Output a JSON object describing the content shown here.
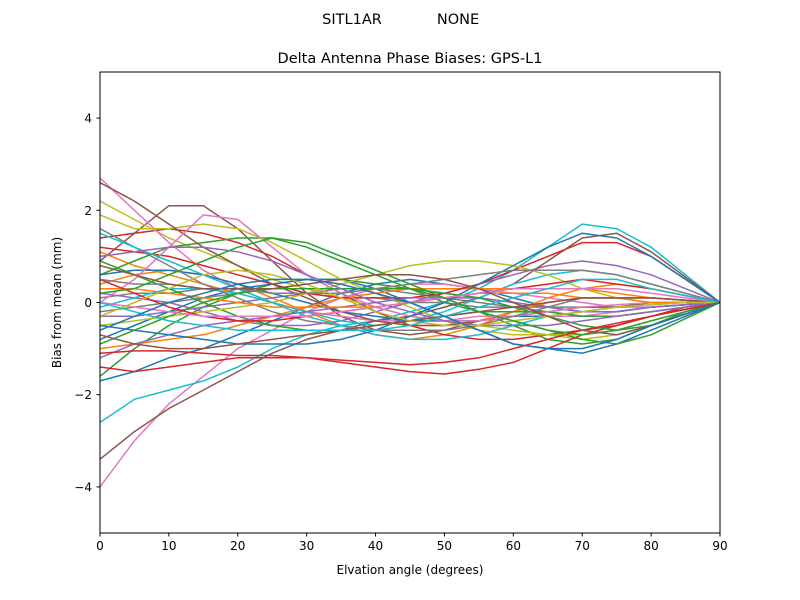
{
  "chart_data": {
    "type": "line",
    "suptitle_left": "SITL1AR",
    "suptitle_right": "NONE",
    "title": "Delta Antenna Phase Biases: GPS-L1",
    "xlabel": "Elvation angle (degrees)",
    "ylabel": "Bias from mean (mm)",
    "xlim": [
      0,
      90
    ],
    "ylim": [
      -5,
      5
    ],
    "xticks": [
      0,
      10,
      20,
      30,
      40,
      50,
      60,
      70,
      80,
      90
    ],
    "yticks": [
      -4,
      -2,
      0,
      2,
      4
    ],
    "grid": false,
    "legend": "none",
    "x": [
      0,
      5,
      10,
      15,
      20,
      25,
      30,
      35,
      40,
      45,
      50,
      55,
      60,
      65,
      70,
      75,
      80,
      85,
      90
    ],
    "series": [
      {
        "color": "#1f77b4",
        "values": [
          -1.7,
          -1.5,
          -1.2,
          -1.0,
          -0.7,
          -0.4,
          -0.1,
          0.2,
          0.4,
          0.5,
          0.4,
          0.3,
          0.1,
          -0.1,
          -0.2,
          -0.2,
          -0.1,
          -0.05,
          0
        ]
      },
      {
        "color": "#ff7f0e",
        "values": [
          0.4,
          0.6,
          0.7,
          0.6,
          0.4,
          0.1,
          -0.2,
          -0.5,
          -0.7,
          -0.8,
          -0.7,
          -0.5,
          -0.2,
          0.1,
          0.3,
          0.4,
          0.3,
          0.15,
          0
        ]
      },
      {
        "color": "#2ca02c",
        "values": [
          -1.6,
          -1.0,
          -0.5,
          -0.1,
          0.2,
          0.4,
          0.5,
          0.5,
          0.4,
          0.3,
          0.1,
          -0.2,
          -0.5,
          -0.8,
          -0.9,
          -0.8,
          -0.5,
          -0.2,
          0
        ]
      },
      {
        "color": "#d62728",
        "values": [
          1.4,
          1.5,
          1.6,
          1.5,
          1.3,
          1.0,
          0.6,
          0.2,
          -0.2,
          -0.5,
          -0.7,
          -0.8,
          -0.8,
          -0.7,
          -0.6,
          -0.5,
          -0.3,
          -0.1,
          0
        ]
      },
      {
        "color": "#9467bd",
        "values": [
          -0.3,
          -0.3,
          -0.2,
          -0.1,
          0.0,
          0.1,
          0.2,
          0.3,
          0.3,
          0.3,
          0.2,
          0.1,
          0.0,
          -0.1,
          -0.2,
          -0.2,
          -0.1,
          -0.05,
          0
        ]
      },
      {
        "color": "#8c564b",
        "values": [
          0.9,
          1.5,
          2.1,
          2.1,
          1.6,
          0.9,
          0.2,
          -0.3,
          -0.6,
          -0.7,
          -0.6,
          -0.4,
          -0.2,
          0.0,
          0.1,
          0.1,
          0.1,
          0.05,
          0
        ]
      },
      {
        "color": "#e377c2",
        "values": [
          -4.0,
          -3.0,
          -2.2,
          -1.6,
          -1.0,
          -0.6,
          -0.2,
          0.1,
          0.3,
          0.4,
          0.4,
          0.3,
          0.2,
          0.1,
          0.0,
          -0.1,
          -0.1,
          -0.05,
          0
        ]
      },
      {
        "color": "#7f7f7f",
        "values": [
          0.1,
          0.2,
          0.2,
          0.3,
          0.3,
          0.2,
          0.2,
          0.1,
          0.1,
          0.0,
          0.0,
          -0.1,
          -0.1,
          -0.1,
          -0.1,
          -0.1,
          0.0,
          0.0,
          0
        ]
      },
      {
        "color": "#bcbd22",
        "values": [
          2.2,
          1.8,
          1.4,
          1.1,
          0.8,
          0.5,
          0.3,
          0.1,
          -0.1,
          -0.3,
          -0.4,
          -0.5,
          -0.6,
          -0.7,
          -0.8,
          -0.7,
          -0.5,
          -0.25,
          0
        ]
      },
      {
        "color": "#17becf",
        "values": [
          -2.6,
          -2.1,
          -1.9,
          -1.7,
          -1.4,
          -1.0,
          -0.7,
          -0.5,
          -0.4,
          -0.2,
          0.0,
          0.3,
          0.7,
          1.2,
          1.7,
          1.6,
          1.2,
          0.6,
          0
        ]
      },
      {
        "color": "#1f77b4",
        "values": [
          -0.8,
          -0.5,
          -0.2,
          0.1,
          0.3,
          0.4,
          0.5,
          0.5,
          0.3,
          0.0,
          -0.3,
          -0.6,
          -0.9,
          -1.0,
          -1.1,
          -0.9,
          -0.6,
          -0.3,
          0
        ]
      },
      {
        "color": "#ff7f0e",
        "values": [
          1.1,
          0.8,
          0.6,
          0.4,
          0.2,
          0.0,
          -0.2,
          -0.3,
          -0.4,
          -0.5,
          -0.5,
          -0.4,
          -0.2,
          0.0,
          0.1,
          0.1,
          0.1,
          0.05,
          0
        ]
      },
      {
        "color": "#2ca02c",
        "values": [
          0.6,
          0.9,
          1.2,
          1.3,
          1.4,
          1.4,
          1.2,
          0.9,
          0.6,
          0.3,
          0.0,
          -0.2,
          -0.4,
          -0.6,
          -0.8,
          -0.9,
          -0.7,
          -0.35,
          0
        ]
      },
      {
        "color": "#d62728",
        "values": [
          -1.4,
          -1.5,
          -1.4,
          -1.3,
          -1.2,
          -1.2,
          -1.2,
          -1.3,
          -1.4,
          -1.5,
          -1.55,
          -1.45,
          -1.3,
          -1.0,
          -0.7,
          -0.5,
          -0.3,
          -0.15,
          0
        ]
      },
      {
        "color": "#9467bd",
        "values": [
          0.2,
          0.1,
          0.0,
          -0.2,
          -0.4,
          -0.5,
          -0.5,
          -0.4,
          -0.2,
          0.0,
          0.2,
          0.4,
          0.6,
          0.8,
          0.9,
          0.8,
          0.6,
          0.3,
          0
        ]
      },
      {
        "color": "#8c564b",
        "values": [
          -3.4,
          -2.8,
          -2.3,
          -1.9,
          -1.5,
          -1.1,
          -0.8,
          -0.6,
          -0.4,
          -0.3,
          -0.1,
          0.1,
          0.4,
          0.9,
          1.4,
          1.5,
          1.1,
          0.55,
          0
        ]
      },
      {
        "color": "#e377c2",
        "values": [
          2.7,
          2.0,
          1.3,
          0.7,
          0.3,
          0.0,
          -0.2,
          -0.3,
          -0.4,
          -0.4,
          -0.4,
          -0.3,
          -0.3,
          -0.3,
          -0.3,
          -0.2,
          -0.1,
          -0.05,
          0
        ]
      },
      {
        "color": "#7f7f7f",
        "values": [
          -0.2,
          -0.1,
          0.0,
          0.1,
          0.2,
          0.3,
          0.3,
          0.3,
          0.3,
          0.2,
          0.1,
          0.0,
          -0.1,
          -0.2,
          -0.3,
          -0.3,
          -0.2,
          -0.1,
          0
        ]
      },
      {
        "color": "#bcbd22",
        "values": [
          1.9,
          1.6,
          1.6,
          1.7,
          1.6,
          1.3,
          0.9,
          0.5,
          0.2,
          -0.1,
          -0.4,
          -0.6,
          -0.7,
          -0.7,
          -0.7,
          -0.6,
          -0.4,
          -0.2,
          0
        ]
      },
      {
        "color": "#17becf",
        "values": [
          -0.1,
          0.1,
          0.3,
          0.3,
          0.2,
          0.0,
          -0.2,
          -0.4,
          -0.5,
          -0.4,
          -0.2,
          0.1,
          0.4,
          0.6,
          0.7,
          0.6,
          0.4,
          0.2,
          0
        ]
      },
      {
        "color": "#1f77b4",
        "values": [
          0.6,
          0.7,
          0.7,
          0.6,
          0.4,
          0.2,
          0.0,
          -0.2,
          -0.3,
          -0.4,
          -0.4,
          -0.4,
          -0.3,
          -0.3,
          -0.2,
          -0.2,
          -0.1,
          -0.05,
          0
        ]
      },
      {
        "color": "#ff7f0e",
        "values": [
          -1.0,
          -0.9,
          -0.8,
          -0.7,
          -0.5,
          -0.3,
          -0.1,
          0.1,
          0.2,
          0.3,
          0.3,
          0.3,
          0.3,
          0.3,
          0.3,
          0.2,
          0.1,
          0.05,
          0
        ]
      },
      {
        "color": "#2ca02c",
        "values": [
          0.9,
          0.6,
          0.3,
          0.0,
          -0.3,
          -0.5,
          -0.6,
          -0.6,
          -0.5,
          -0.4,
          -0.3,
          -0.2,
          -0.2,
          -0.2,
          -0.3,
          -0.3,
          -0.2,
          -0.1,
          0
        ]
      },
      {
        "color": "#d62728",
        "values": [
          1.2,
          1.1,
          1.0,
          0.8,
          0.6,
          0.4,
          0.2,
          0.1,
          0.1,
          0.1,
          0.2,
          0.4,
          0.7,
          1.0,
          1.3,
          1.3,
          1.0,
          0.5,
          0
        ]
      },
      {
        "color": "#9467bd",
        "values": [
          -1.2,
          -0.9,
          -0.7,
          -0.5,
          -0.4,
          -0.3,
          -0.2,
          -0.1,
          0.0,
          0.1,
          0.1,
          0.1,
          0.0,
          -0.1,
          -0.2,
          -0.2,
          -0.1,
          -0.05,
          0
        ]
      },
      {
        "color": "#8c564b",
        "values": [
          2.6,
          2.2,
          1.7,
          1.2,
          0.8,
          0.4,
          0.1,
          -0.2,
          -0.4,
          -0.5,
          -0.5,
          -0.4,
          -0.3,
          -0.2,
          -0.1,
          -0.1,
          0.0,
          0.0,
          0
        ]
      },
      {
        "color": "#e377c2",
        "values": [
          0.0,
          0.5,
          1.2,
          1.9,
          1.8,
          1.2,
          0.6,
          0.2,
          -0.1,
          -0.3,
          -0.4,
          -0.4,
          -0.3,
          -0.2,
          -0.1,
          -0.05,
          0.0,
          0.0,
          0
        ]
      },
      {
        "color": "#7f7f7f",
        "values": [
          1.6,
          1.2,
          0.8,
          0.4,
          0.1,
          -0.2,
          -0.4,
          -0.5,
          -0.6,
          -0.6,
          -0.6,
          -0.5,
          -0.3,
          -0.1,
          0.1,
          0.1,
          0.1,
          0.05,
          0
        ]
      },
      {
        "color": "#bcbd22",
        "values": [
          -0.5,
          -0.4,
          -0.3,
          -0.2,
          -0.1,
          0.0,
          0.2,
          0.4,
          0.6,
          0.8,
          0.9,
          0.9,
          0.8,
          0.6,
          0.3,
          0.1,
          0.0,
          0.0,
          0
        ]
      },
      {
        "color": "#17becf",
        "values": [
          1.5,
          1.2,
          0.9,
          0.6,
          0.3,
          0.0,
          -0.3,
          -0.5,
          -0.7,
          -0.8,
          -0.8,
          -0.7,
          -0.5,
          -0.3,
          -0.2,
          -0.1,
          -0.05,
          0.0,
          0
        ]
      },
      {
        "color": "#1f77b4",
        "values": [
          -0.5,
          -0.6,
          -0.7,
          -0.8,
          -0.9,
          -0.9,
          -0.9,
          -0.8,
          -0.6,
          -0.3,
          0.0,
          0.4,
          0.8,
          1.2,
          1.5,
          1.4,
          1.0,
          0.5,
          0
        ]
      },
      {
        "color": "#ff7f0e",
        "values": [
          0.3,
          0.3,
          0.2,
          0.1,
          0.0,
          -0.1,
          -0.1,
          -0.1,
          -0.1,
          0.0,
          0.1,
          0.2,
          0.2,
          0.2,
          0.1,
          0.1,
          0.0,
          0.0,
          0
        ]
      },
      {
        "color": "#2ca02c",
        "values": [
          -0.9,
          -0.6,
          -0.3,
          0.0,
          0.2,
          0.3,
          0.3,
          0.3,
          0.3,
          0.3,
          0.2,
          0.1,
          -0.1,
          -0.3,
          -0.5,
          -0.6,
          -0.5,
          -0.25,
          0
        ]
      },
      {
        "color": "#d62728",
        "values": [
          0.5,
          0.2,
          -0.1,
          -0.3,
          -0.4,
          -0.4,
          -0.3,
          -0.2,
          -0.1,
          0.0,
          0.1,
          0.2,
          0.3,
          0.4,
          0.5,
          0.4,
          0.3,
          0.15,
          0
        ]
      },
      {
        "color": "#9467bd",
        "values": [
          1.0,
          1.1,
          1.2,
          1.2,
          1.1,
          0.9,
          0.6,
          0.3,
          0.0,
          -0.2,
          -0.4,
          -0.5,
          -0.5,
          -0.5,
          -0.4,
          -0.3,
          -0.2,
          -0.1,
          0
        ]
      },
      {
        "color": "#8c564b",
        "values": [
          -0.7,
          -0.9,
          -1.0,
          -1.0,
          -0.9,
          -0.8,
          -0.7,
          -0.6,
          -0.5,
          -0.4,
          -0.3,
          -0.2,
          -0.1,
          0.0,
          0.1,
          0.1,
          0.1,
          0.05,
          0
        ]
      },
      {
        "color": "#e377c2",
        "values": [
          0.0,
          -0.1,
          -0.2,
          -0.3,
          -0.3,
          -0.3,
          -0.3,
          -0.2,
          -0.1,
          0.0,
          0.1,
          0.2,
          0.3,
          0.3,
          0.3,
          0.3,
          0.2,
          0.1,
          0
        ]
      },
      {
        "color": "#7f7f7f",
        "values": [
          0.5,
          0.4,
          0.4,
          0.3,
          0.3,
          0.2,
          0.2,
          0.2,
          0.3,
          0.4,
          0.5,
          0.6,
          0.7,
          0.7,
          0.7,
          0.6,
          0.4,
          0.2,
          0
        ]
      },
      {
        "color": "#bcbd22",
        "values": [
          -0.3,
          0.0,
          0.3,
          0.6,
          0.7,
          0.6,
          0.4,
          0.1,
          -0.2,
          -0.4,
          -0.5,
          -0.5,
          -0.4,
          -0.3,
          -0.2,
          -0.1,
          -0.05,
          0.0,
          0
        ]
      },
      {
        "color": "#17becf",
        "values": [
          0.0,
          -0.2,
          -0.4,
          -0.5,
          -0.6,
          -0.6,
          -0.6,
          -0.6,
          -0.6,
          -0.5,
          -0.3,
          -0.1,
          0.1,
          0.3,
          0.5,
          0.5,
          0.3,
          0.15,
          0
        ]
      },
      {
        "color": "#2ca02c",
        "values": [
          0.2,
          0.3,
          0.6,
          0.9,
          1.2,
          1.4,
          1.3,
          1.0,
          0.7,
          0.4,
          0.1,
          -0.2,
          -0.4,
          -0.6,
          -0.7,
          -0.6,
          -0.4,
          -0.2,
          0
        ]
      },
      {
        "color": "#d62728",
        "values": [
          -1.1,
          -1.05,
          -1.05,
          -1.1,
          -1.15,
          -1.15,
          -1.2,
          -1.25,
          -1.3,
          -1.35,
          -1.3,
          -1.2,
          -1.0,
          -0.8,
          -0.6,
          -0.45,
          -0.3,
          -0.15,
          0
        ]
      },
      {
        "color": "#8c564b",
        "values": [
          0.8,
          0.6,
          0.4,
          0.3,
          0.3,
          0.3,
          0.4,
          0.5,
          0.6,
          0.6,
          0.5,
          0.3,
          0.0,
          -0.3,
          -0.6,
          -0.7,
          -0.5,
          -0.25,
          0
        ]
      },
      {
        "color": "#1f77b4",
        "values": [
          -0.6,
          -0.3,
          0.0,
          0.2,
          0.4,
          0.5,
          0.5,
          0.4,
          0.2,
          0.0,
          -0.3,
          -0.6,
          -0.9,
          -1.0,
          -1.0,
          -0.8,
          -0.5,
          -0.25,
          0
        ]
      }
    ]
  }
}
